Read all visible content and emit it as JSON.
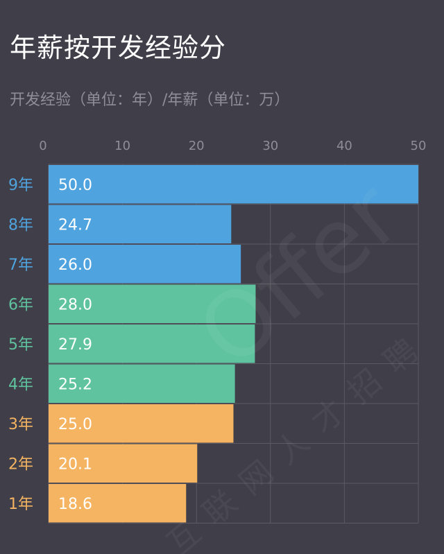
{
  "colors": {
    "background": "#403e48",
    "grid": "#5c5a64",
    "axis_label": "#8f8d97",
    "blue": "#4fa3de",
    "green": "#5fc3a0",
    "orange": "#f5b462",
    "bar_text": "#ffffff"
  },
  "chart_data": {
    "type": "bar",
    "orientation": "horizontal",
    "title": "年薪按开发经验分",
    "subtitle": "开发经验（单位：年）/年薪（单位：万）",
    "categories": [
      "9年",
      "8年",
      "7年",
      "6年",
      "5年",
      "4年",
      "3年",
      "2年",
      "1年"
    ],
    "values": [
      50.0,
      24.7,
      26.0,
      28.0,
      27.9,
      25.2,
      25.0,
      20.1,
      18.6
    ],
    "value_labels": [
      "50.0",
      "24.7",
      "26.0",
      "28.0",
      "27.9",
      "25.2",
      "25.0",
      "20.1",
      "18.6"
    ],
    "bar_colors": [
      "#4fa3de",
      "#4fa3de",
      "#4fa3de",
      "#5fc3a0",
      "#5fc3a0",
      "#5fc3a0",
      "#f5b462",
      "#f5b462",
      "#f5b462"
    ],
    "xticks": [
      0,
      10,
      20,
      30,
      40,
      50
    ],
    "xlim": [
      0,
      50
    ],
    "xaxis_position": "top",
    "grid": true
  },
  "watermark": {
    "text": "Offer",
    "cjk_text": "互联网人才招聘"
  }
}
